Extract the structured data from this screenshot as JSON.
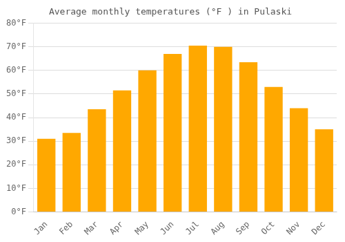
{
  "chart_data": {
    "type": "bar",
    "title": "Average monthly temperatures (°F ) in Pulaski",
    "categories": [
      "Jan",
      "Feb",
      "Mar",
      "Apr",
      "May",
      "Jun",
      "Jul",
      "Aug",
      "Sep",
      "Oct",
      "Nov",
      "Dec"
    ],
    "values": [
      31,
      33.5,
      43.5,
      51.5,
      60,
      67,
      70.5,
      70,
      63.5,
      53,
      44,
      35
    ],
    "color": "#FFA800",
    "ylim": [
      0,
      80
    ],
    "yticks": [
      {
        "value": 0,
        "label": "0°F"
      },
      {
        "value": 10,
        "label": "10°F"
      },
      {
        "value": 20,
        "label": "20°F"
      },
      {
        "value": 30,
        "label": "30°F"
      },
      {
        "value": 40,
        "label": "40°F"
      },
      {
        "value": 50,
        "label": "50°F"
      },
      {
        "value": 60,
        "label": "60°F"
      },
      {
        "value": 70,
        "label": "70°F"
      },
      {
        "value": 80,
        "label": "80°F"
      }
    ],
    "grid": true
  }
}
